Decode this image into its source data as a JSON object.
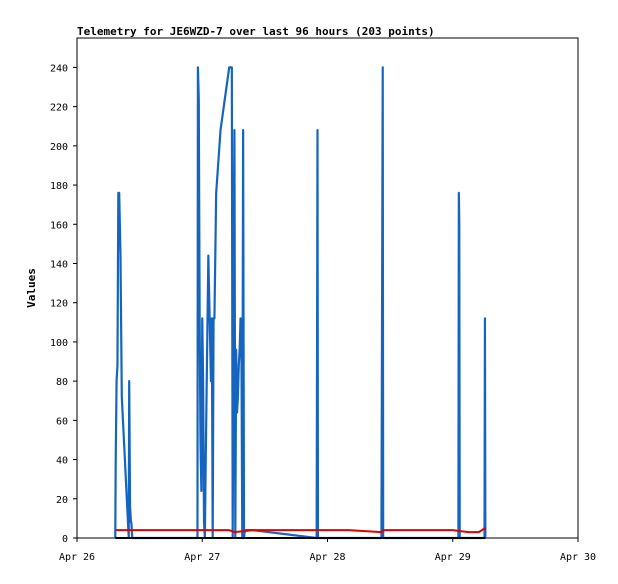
{
  "chart_data": {
    "type": "line",
    "title": "Telemetry for JE6WZD-7 over last 96 hours (203 points)",
    "xlabel": "",
    "ylabel": "Values",
    "x_tick_labels": [
      "Apr 26",
      "Apr 27",
      "Apr 28",
      "Apr 29",
      "Apr 30"
    ],
    "xlim": [
      "2024-04-26T00:00",
      "2024-04-30T00:00"
    ],
    "y_tick_labels": [
      "0",
      "20",
      "40",
      "60",
      "80",
      "100",
      "120",
      "140",
      "160",
      "180",
      "200",
      "220",
      "240"
    ],
    "ylim": [
      0,
      255
    ],
    "grid": false,
    "legend": false,
    "series": [
      {
        "color": "#1565c0",
        "x": [
          "2024-04-26T07:20",
          "2024-04-26T07:25",
          "2024-04-26T07:35",
          "2024-04-26T07:45",
          "2024-04-26T07:55",
          "2024-04-26T08:05",
          "2024-04-26T08:20",
          "2024-04-26T08:35",
          "2024-04-26T09:55",
          "2024-04-26T10:00",
          "2024-04-26T10:10",
          "2024-04-26T10:20",
          "2024-04-26T10:25",
          "2024-04-26T10:35",
          "2024-04-26T23:05",
          "2024-04-26T23:10",
          "2024-04-26T23:20",
          "2024-04-26T23:30",
          "2024-04-26T23:40",
          "2024-04-26T23:50",
          "2024-04-27T00:00",
          "2024-04-27T00:10",
          "2024-04-27T00:20",
          "2024-04-27T00:30",
          "2024-04-27T00:40",
          "2024-04-27T01:10",
          "2024-04-27T01:40",
          "2024-04-27T01:50",
          "2024-04-27T02:00",
          "2024-04-27T02:10",
          "2024-04-27T02:20",
          "2024-04-27T02:40",
          "2024-04-27T03:30",
          "2024-04-27T04:20",
          "2024-04-27T05:10",
          "2024-04-27T05:30",
          "2024-04-27T05:40",
          "2024-04-27T05:50",
          "2024-04-27T06:00",
          "2024-04-27T06:10",
          "2024-04-27T06:20",
          "2024-04-27T06:30",
          "2024-04-27T06:40",
          "2024-04-27T06:50",
          "2024-04-27T07:00",
          "2024-04-27T07:10",
          "2024-04-27T07:20",
          "2024-04-27T07:30",
          "2024-04-27T07:40",
          "2024-04-27T07:50",
          "2024-04-27T08:00",
          "2024-04-27T08:10",
          "2024-04-27T08:20",
          "2024-04-27T08:30",
          "2024-04-27T08:40",
          "2024-04-27T08:50",
          "2024-04-27T09:00",
          "2024-04-27T09:10",
          "2024-04-27T09:20",
          "2024-04-27T09:30",
          "2024-04-27T09:40",
          "2024-04-27T21:55",
          "2024-04-27T22:00",
          "2024-04-27T22:05",
          "2024-04-27T22:10",
          "2024-04-28T10:20",
          "2024-04-28T10:25",
          "2024-04-28T10:30",
          "2024-04-28T10:35",
          "2024-04-28T10:40",
          "2024-04-28T10:45",
          "2024-04-29T01:05",
          "2024-04-29T01:10",
          "2024-04-29T01:15",
          "2024-04-29T01:20",
          "2024-04-29T06:05",
          "2024-04-29T06:10",
          "2024-04-29T06:15"
        ],
        "y": [
          0,
          40,
          80,
          88,
          176,
          176,
          144,
          72,
          0,
          80,
          16,
          8,
          8,
          0,
          0,
          240,
          224,
          112,
          48,
          24,
          112,
          80,
          8,
          0,
          40,
          144,
          80,
          112,
          0,
          112,
          112,
          176,
          208,
          224,
          240,
          240,
          240,
          0,
          104,
          208,
          0,
          96,
          64,
          72,
          88,
          96,
          112,
          104,
          0,
          208,
          0,
          4,
          4,
          4,
          4,
          4,
          4,
          4,
          4,
          4,
          4,
          0,
          96,
          208,
          0,
          0,
          80,
          160,
          240,
          0,
          0,
          0,
          176,
          160,
          0,
          0,
          112,
          0
        ]
      },
      {
        "color": "#e00000",
        "x": [
          "2024-04-26T07:20",
          "2024-04-26T10:35",
          "2024-04-26T23:05",
          "2024-04-27T05:10",
          "2024-04-27T06:10",
          "2024-04-27T09:40",
          "2024-04-28T00:00",
          "2024-04-28T04:00",
          "2024-04-28T10:20",
          "2024-04-28T10:45",
          "2024-04-28T18:00",
          "2024-04-29T00:00",
          "2024-04-29T03:00",
          "2024-04-29T05:00",
          "2024-04-29T06:10",
          "2024-04-29T06:15"
        ],
        "y": [
          4,
          4,
          4,
          4,
          3,
          4,
          4,
          4,
          3,
          4,
          4,
          4,
          3,
          3,
          5,
          4
        ]
      },
      {
        "color": "#000000",
        "x": [
          "2024-04-26T07:20",
          "2024-04-29T06:15"
        ],
        "y": [
          0,
          0
        ]
      }
    ]
  }
}
